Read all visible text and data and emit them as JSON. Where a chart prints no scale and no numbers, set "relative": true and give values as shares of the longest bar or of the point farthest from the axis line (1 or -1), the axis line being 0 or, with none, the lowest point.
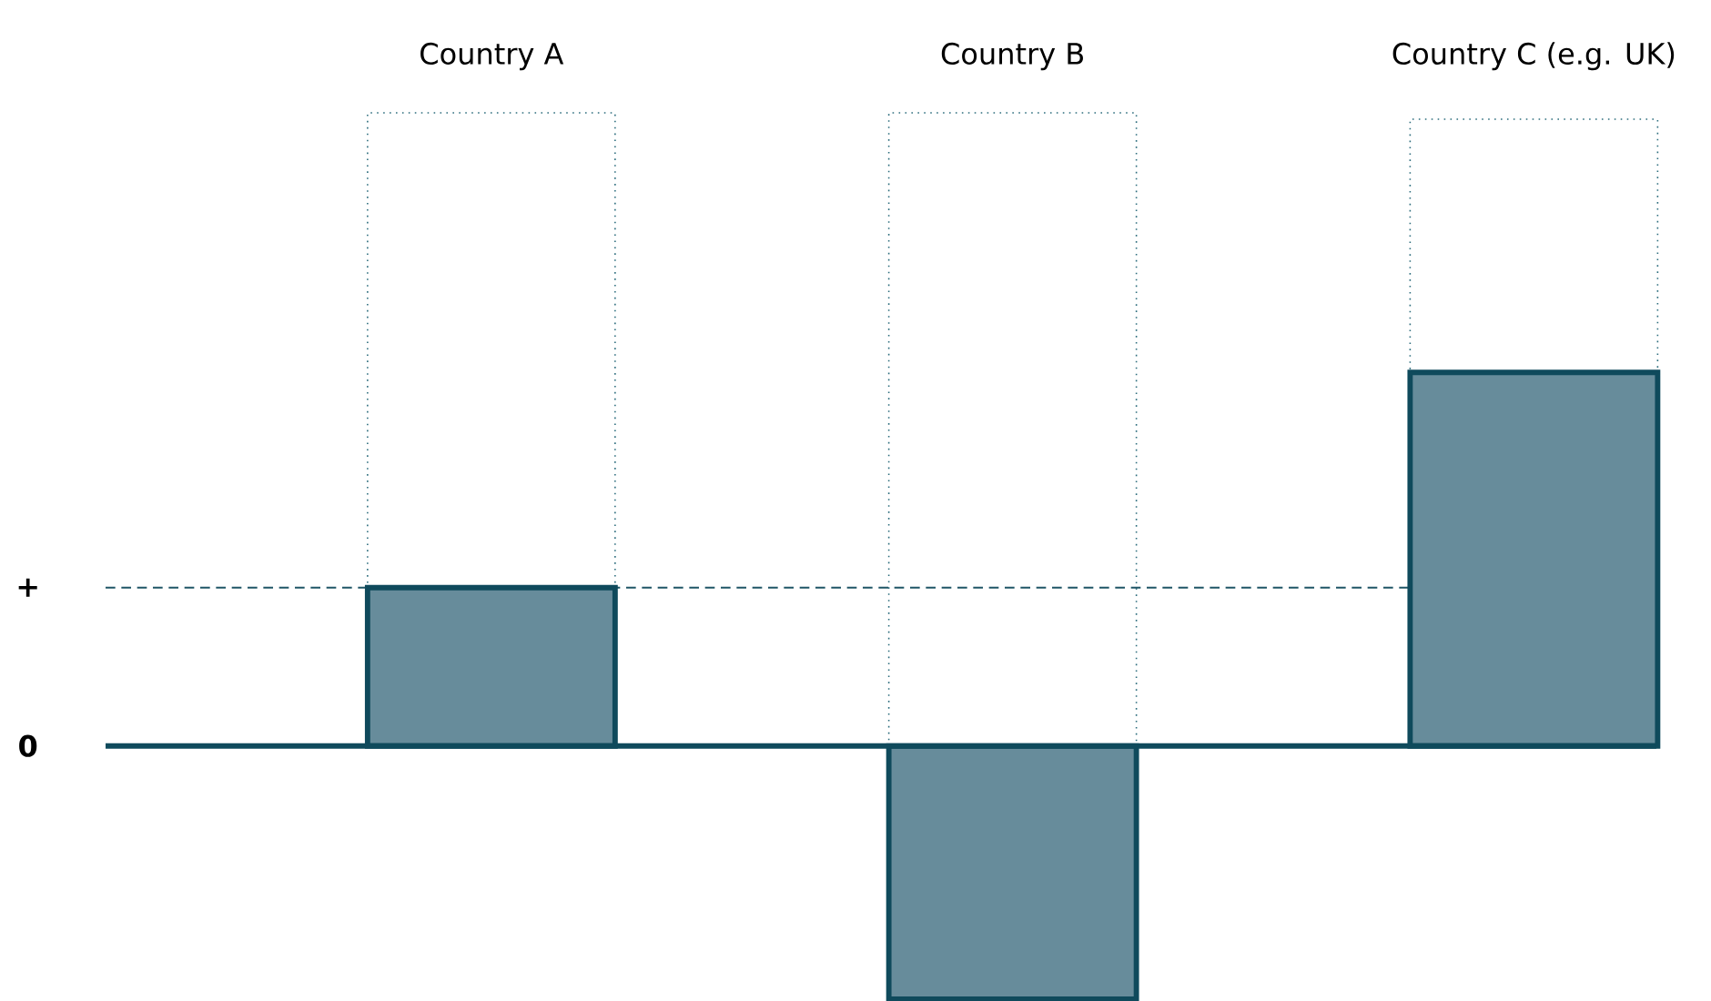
{
  "chart_data": {
    "type": "bar",
    "relative": true,
    "stacked": true,
    "categories": [
      "Country A",
      "Country B",
      "Country C (e.g. UK)"
    ],
    "series": [
      {
        "color": "#678c9b",
        "line_style": "solid",
        "values": [
          0.25,
          -0.4,
          0.59
        ]
      },
      {
        "color": "#2e6e7e",
        "line_style": "dotted",
        "values": [
          0.75,
          1.0,
          0.4
        ]
      }
    ],
    "ref_lines": [
      {
        "axis": "y",
        "value": 0.25,
        "label": "+",
        "line_style": "dashed",
        "color": "#1f5566"
      },
      {
        "axis": "y",
        "value": 0,
        "label": "0",
        "line_style": "solid",
        "color": "#0f4a5c"
      }
    ]
  }
}
